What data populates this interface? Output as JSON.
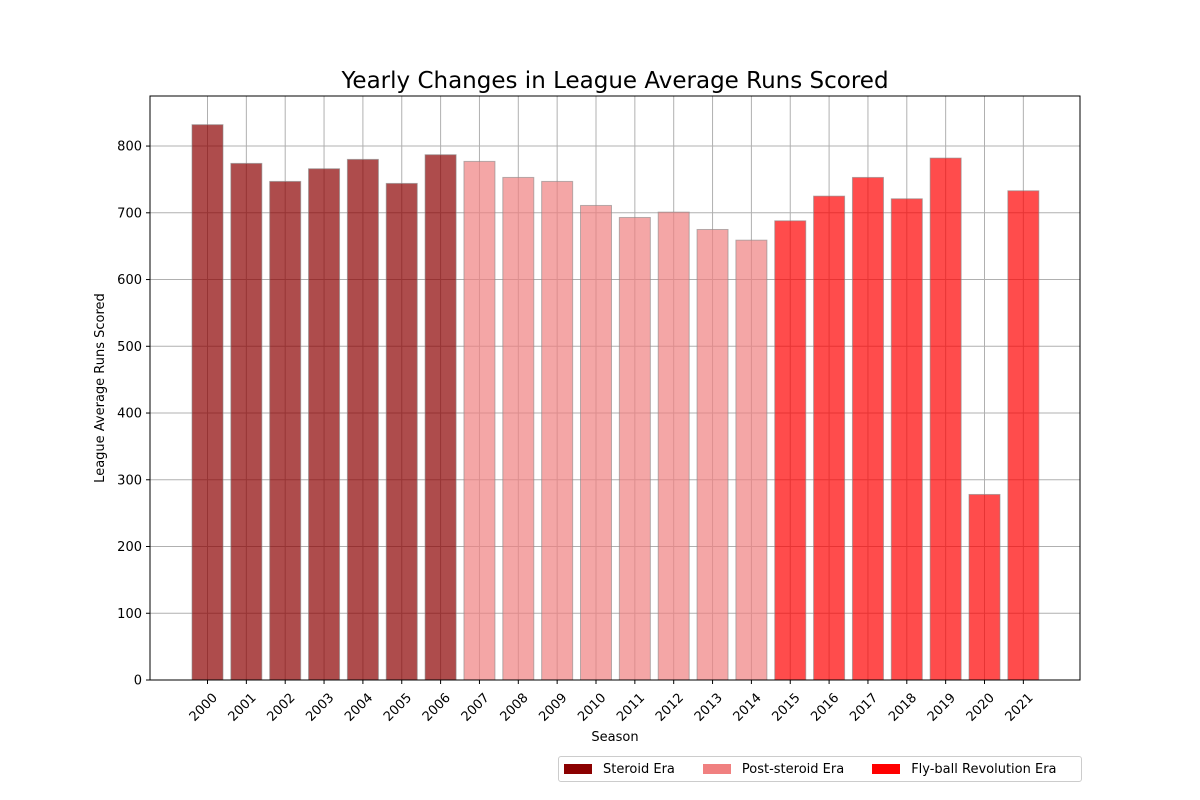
{
  "chart_data": {
    "type": "bar",
    "title": "Yearly Changes in League Average Runs Scored",
    "xlabel": "Season",
    "ylabel": "League Average Runs Scored",
    "ylim": [
      0,
      875
    ],
    "yticks": [
      0,
      100,
      200,
      300,
      400,
      500,
      600,
      700,
      800
    ],
    "grid": true,
    "categories": [
      "2000",
      "2001",
      "2002",
      "2003",
      "2004",
      "2005",
      "2006",
      "2007",
      "2008",
      "2009",
      "2010",
      "2011",
      "2012",
      "2013",
      "2014",
      "2015",
      "2016",
      "2017",
      "2018",
      "2019",
      "2020",
      "2021"
    ],
    "values": [
      832,
      774,
      747,
      766,
      780,
      744,
      787,
      777,
      753,
      747,
      711,
      693,
      701,
      675,
      659,
      688,
      725,
      753,
      721,
      782,
      278,
      733
    ],
    "eras": [
      "Steroid Era",
      "Steroid Era",
      "Steroid Era",
      "Steroid Era",
      "Steroid Era",
      "Steroid Era",
      "Steroid Era",
      "Post-steroid Era",
      "Post-steroid Era",
      "Post-steroid Era",
      "Post-steroid Era",
      "Post-steroid Era",
      "Post-steroid Era",
      "Post-steroid Era",
      "Post-steroid Era",
      "Fly-ball Revolution Era",
      "Fly-ball Revolution Era",
      "Fly-ball Revolution Era",
      "Fly-ball Revolution Era",
      "Fly-ball Revolution Era",
      "Fly-ball Revolution Era",
      "Fly-ball Revolution Era"
    ],
    "bar_alpha": 0.7,
    "legend_placement": "bottom-right",
    "legend": [
      {
        "label": "Steroid Era",
        "color": "#8b0000"
      },
      {
        "label": "Post-steroid Era",
        "color": "#f08080"
      },
      {
        "label": "Fly-ball Revolution Era",
        "color": "#ff0000"
      }
    ]
  }
}
